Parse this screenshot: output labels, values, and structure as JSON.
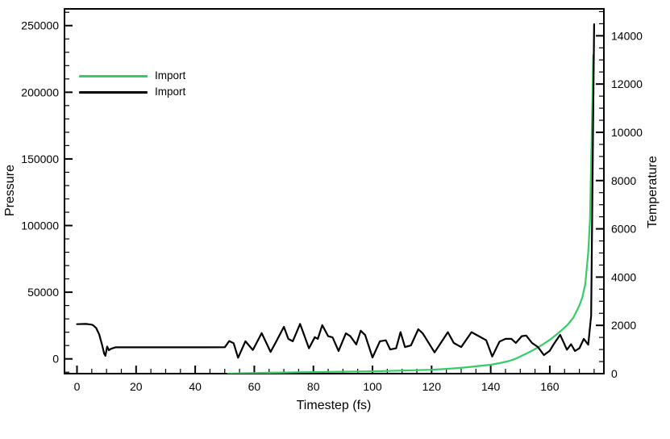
{
  "figure": {
    "background": "#ffffff",
    "frame_color": "#000000"
  },
  "legend": {
    "position": "upper-left-inside"
  },
  "chart_data": {
    "type": "line",
    "title": "",
    "xlabel": "Timestep (fs)",
    "ylabel_left": "Pressure",
    "ylabel_right": "Temperature",
    "xlim": [
      -4.23,
      178.3
    ],
    "ylim_left": [
      -11077,
      262551
    ],
    "ylim_right": [
      0,
      15115
    ],
    "x_ticks_major": [
      0,
      20,
      40,
      60,
      80,
      100,
      120,
      140,
      160
    ],
    "x_tick_minor_step": 5,
    "y_left_ticks_major": [
      0,
      50000,
      100000,
      150000,
      200000,
      250000
    ],
    "y_left_tick_minor_step": 10000,
    "y_right_ticks_major": [
      0,
      2000,
      4000,
      6000,
      8000,
      10000,
      12000,
      14000
    ],
    "y_right_tick_minor_step": 500,
    "grid": false,
    "series": [
      {
        "name": "Import",
        "color": "#33CC66",
        "axis": "left",
        "points": [
          [
            51,
            -11050
          ],
          [
            53,
            -10950
          ],
          [
            56,
            -10800
          ],
          [
            60,
            -10600
          ],
          [
            65,
            -10400
          ],
          [
            70,
            -10200
          ],
          [
            75,
            -10050
          ],
          [
            80,
            -9900
          ],
          [
            85,
            -9750
          ],
          [
            90,
            -9600
          ],
          [
            95,
            -9450
          ],
          [
            100,
            -9300
          ],
          [
            105,
            -9050
          ],
          [
            110,
            -8750
          ],
          [
            115,
            -8450
          ],
          [
            120,
            -8200
          ],
          [
            124,
            -7700
          ],
          [
            128,
            -7100
          ],
          [
            132,
            -6300
          ],
          [
            136,
            -5300
          ],
          [
            140,
            -4400
          ],
          [
            143,
            -3200
          ],
          [
            146,
            -1700
          ],
          [
            148,
            -300
          ],
          [
            150,
            1800
          ],
          [
            152,
            3900
          ],
          [
            154,
            6100
          ],
          [
            156,
            8600
          ],
          [
            158,
            11300
          ],
          [
            160,
            14300
          ],
          [
            162,
            17800
          ],
          [
            164,
            21500
          ],
          [
            166,
            25500
          ],
          [
            168,
            31000
          ],
          [
            170,
            40000
          ],
          [
            171,
            46000
          ],
          [
            172,
            56000
          ],
          [
            173,
            80000
          ],
          [
            173.6,
            105000
          ],
          [
            174,
            148000
          ],
          [
            174.4,
            190000
          ],
          [
            174.7,
            228000
          ]
        ]
      },
      {
        "name": "Import",
        "color": "#000000",
        "axis": "right",
        "points": [
          [
            0,
            2050
          ],
          [
            3,
            2060
          ],
          [
            4,
            2045
          ],
          [
            5,
            2030
          ],
          [
            5.5,
            2000
          ],
          [
            6.5,
            1890
          ],
          [
            7.5,
            1630
          ],
          [
            8.5,
            1180
          ],
          [
            9.2,
            830
          ],
          [
            9.6,
            740
          ],
          [
            10.2,
            1120
          ],
          [
            10.8,
            970
          ],
          [
            11.5,
            1030
          ],
          [
            13,
            1090
          ],
          [
            20,
            1090
          ],
          [
            30,
            1090
          ],
          [
            40,
            1090
          ],
          [
            50,
            1095
          ],
          [
            51.5,
            1350
          ],
          [
            53,
            1260
          ],
          [
            54.5,
            660
          ],
          [
            57,
            1340
          ],
          [
            59.5,
            980
          ],
          [
            62.5,
            1680
          ],
          [
            65.5,
            900
          ],
          [
            67.5,
            1350
          ],
          [
            70,
            1940
          ],
          [
            71.5,
            1440
          ],
          [
            73,
            1340
          ],
          [
            75.5,
            2060
          ],
          [
            78.5,
            1050
          ],
          [
            80.5,
            1510
          ],
          [
            81.5,
            1440
          ],
          [
            83,
            2010
          ],
          [
            85,
            1550
          ],
          [
            86.5,
            1500
          ],
          [
            88.5,
            940
          ],
          [
            91,
            1670
          ],
          [
            92.5,
            1550
          ],
          [
            94.5,
            1210
          ],
          [
            96,
            1780
          ],
          [
            97.5,
            1600
          ],
          [
            100,
            670
          ],
          [
            102.5,
            1340
          ],
          [
            104.5,
            1380
          ],
          [
            106,
            1000
          ],
          [
            108,
            1050
          ],
          [
            109.5,
            1720
          ],
          [
            111,
            1100
          ],
          [
            113,
            1170
          ],
          [
            115.5,
            1840
          ],
          [
            117,
            1670
          ],
          [
            121,
            880
          ],
          [
            125.5,
            1720
          ],
          [
            127.5,
            1270
          ],
          [
            130,
            1100
          ],
          [
            133.5,
            1720
          ],
          [
            136,
            1550
          ],
          [
            138.5,
            1380
          ],
          [
            140.5,
            710
          ],
          [
            143,
            1330
          ],
          [
            145,
            1440
          ],
          [
            147,
            1440
          ],
          [
            148.5,
            1270
          ],
          [
            150.5,
            1550
          ],
          [
            152,
            1580
          ],
          [
            154,
            1270
          ],
          [
            156,
            1100
          ],
          [
            158,
            770
          ],
          [
            160,
            950
          ],
          [
            161.5,
            1250
          ],
          [
            163.5,
            1610
          ],
          [
            165.8,
            990
          ],
          [
            167.2,
            1220
          ],
          [
            168.5,
            940
          ],
          [
            170,
            1050
          ],
          [
            171.5,
            1440
          ],
          [
            173,
            1200
          ],
          [
            174,
            2400
          ],
          [
            175,
            14480
          ]
        ]
      }
    ]
  }
}
